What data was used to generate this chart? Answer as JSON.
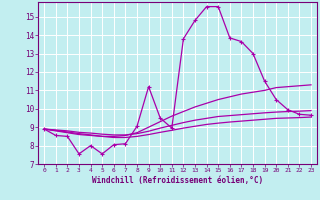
{
  "xlabel": "Windchill (Refroidissement éolien,°C)",
  "xlim": [
    -0.5,
    23.5
  ],
  "ylim": [
    7,
    15.8
  ],
  "yticks": [
    7,
    8,
    9,
    10,
    11,
    12,
    13,
    14,
    15
  ],
  "xticks": [
    0,
    1,
    2,
    3,
    4,
    5,
    6,
    7,
    8,
    9,
    10,
    11,
    12,
    13,
    14,
    15,
    16,
    17,
    18,
    19,
    20,
    21,
    22,
    23
  ],
  "background_color": "#c2eef0",
  "grid_color": "#ffffff",
  "line_color": "#aa00aa",
  "lines": [
    {
      "x": [
        0,
        1,
        2,
        3,
        4,
        5,
        6,
        7,
        8,
        9,
        10,
        11,
        12,
        13,
        14,
        15,
        16,
        17,
        18,
        19,
        20,
        21,
        22,
        23
      ],
      "y": [
        8.9,
        8.55,
        8.5,
        7.55,
        8.0,
        7.55,
        8.05,
        8.1,
        9.05,
        11.2,
        9.5,
        8.95,
        13.8,
        14.8,
        15.55,
        15.55,
        13.85,
        13.65,
        13.0,
        11.5,
        10.5,
        9.95,
        9.7,
        9.65
      ],
      "marker": "+",
      "lw": 0.9
    },
    {
      "x": [
        0,
        1,
        2,
        3,
        4,
        5,
        6,
        7,
        8,
        9,
        10,
        11,
        12,
        13,
        14,
        15,
        16,
        17,
        18,
        19,
        20,
        21,
        22,
        23
      ],
      "y": [
        8.9,
        8.8,
        8.7,
        8.6,
        8.55,
        8.5,
        8.5,
        8.55,
        8.7,
        9.0,
        9.3,
        9.6,
        9.85,
        10.1,
        10.3,
        10.5,
        10.65,
        10.8,
        10.9,
        11.0,
        11.15,
        11.2,
        11.25,
        11.3
      ],
      "marker": null,
      "lw": 0.9
    },
    {
      "x": [
        0,
        1,
        2,
        3,
        4,
        5,
        6,
        7,
        8,
        9,
        10,
        11,
        12,
        13,
        14,
        15,
        16,
        17,
        18,
        19,
        20,
        21,
        22,
        23
      ],
      "y": [
        8.9,
        8.85,
        8.8,
        8.72,
        8.68,
        8.62,
        8.58,
        8.58,
        8.65,
        8.78,
        8.95,
        9.1,
        9.25,
        9.38,
        9.48,
        9.58,
        9.63,
        9.68,
        9.73,
        9.78,
        9.82,
        9.85,
        9.87,
        9.9
      ],
      "marker": null,
      "lw": 0.9
    },
    {
      "x": [
        0,
        1,
        2,
        3,
        4,
        5,
        6,
        7,
        8,
        9,
        10,
        11,
        12,
        13,
        14,
        15,
        16,
        17,
        18,
        19,
        20,
        21,
        22,
        23
      ],
      "y": [
        8.9,
        8.82,
        8.74,
        8.65,
        8.58,
        8.5,
        8.44,
        8.44,
        8.5,
        8.6,
        8.72,
        8.83,
        8.95,
        9.05,
        9.15,
        9.22,
        9.28,
        9.33,
        9.38,
        9.43,
        9.48,
        9.5,
        9.52,
        9.55
      ],
      "marker": null,
      "lw": 0.9
    }
  ]
}
